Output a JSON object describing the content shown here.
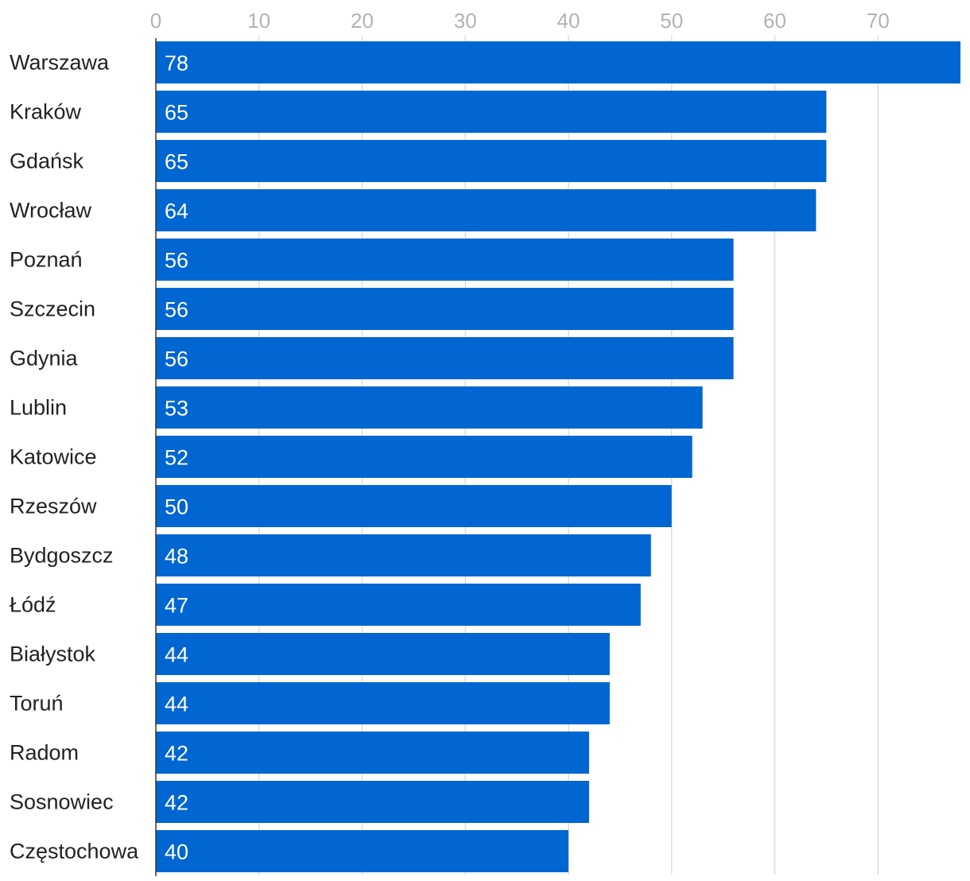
{
  "chart_data": {
    "type": "bar",
    "orientation": "horizontal",
    "title": "",
    "xlabel": "",
    "ylabel": "",
    "xlim": [
      0,
      78
    ],
    "xticks": [
      0,
      10,
      20,
      30,
      40,
      50,
      60,
      70
    ],
    "grid": true,
    "categories": [
      "Warszawa",
      "Kraków",
      "Gdańsk",
      "Wrocław",
      "Poznań",
      "Szczecin",
      "Gdynia",
      "Lublin",
      "Katowice",
      "Rzeszów",
      "Bydgoszcz",
      "Łódź",
      "Białystok",
      "Toruń",
      "Radom",
      "Sosnowiec",
      "Częstochowa"
    ],
    "values": [
      78,
      65,
      65,
      64,
      56,
      56,
      56,
      53,
      52,
      50,
      48,
      47,
      44,
      44,
      42,
      42,
      40
    ],
    "colors": {
      "bar": "#0066d1",
      "grid": "#dddddd",
      "tick_text": "#b3b3b3",
      "category_text": "#222222",
      "value_text": "#ffffff",
      "axis": "#333333"
    }
  }
}
